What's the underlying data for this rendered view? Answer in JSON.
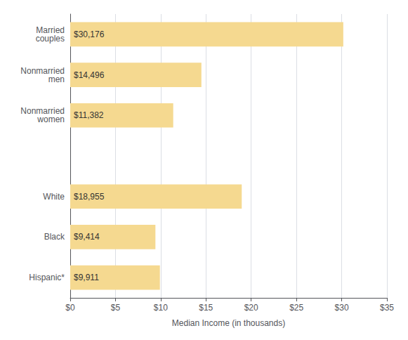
{
  "chart_data": {
    "type": "bar",
    "orientation": "horizontal",
    "categories": [
      "Married\ncouples",
      "Nonmarried\nmen",
      "Nonmarried\nwomen",
      null,
      "White",
      "Black",
      "Hispanic*"
    ],
    "values": [
      30.176,
      14.496,
      11.382,
      null,
      18.955,
      9.414,
      9.911
    ],
    "value_labels": [
      "$30,176",
      "$14,496",
      "$11,382",
      null,
      "$18,955",
      "$9,414",
      "$9,911"
    ],
    "data_labels": true,
    "color": "#F5D990",
    "xlabel": "Median Income (in thousands)",
    "xlim": [
      0,
      35
    ],
    "xticks": [
      {
        "value": 0,
        "label": "$0"
      },
      {
        "value": 5,
        "label": "$5"
      },
      {
        "value": 10,
        "label": "$10"
      },
      {
        "value": 15,
        "label": "$15"
      },
      {
        "value": 20,
        "label": "$20"
      },
      {
        "value": 25,
        "label": "$25"
      },
      {
        "value": 30,
        "label": "$30"
      },
      {
        "value": 35,
        "label": "$35"
      }
    ],
    "grid": true
  }
}
